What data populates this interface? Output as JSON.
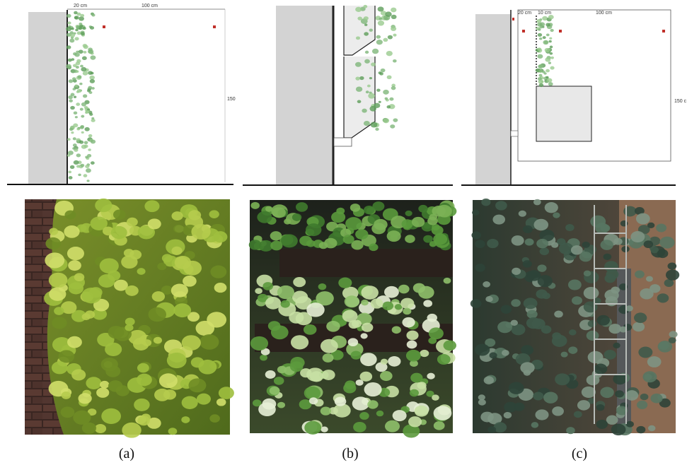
{
  "panels": [
    {
      "caption": "(a)",
      "dimensions": [
        "20 cm",
        "100 cm",
        "150"
      ]
    },
    {
      "caption": "(b)",
      "dimensions": []
    },
    {
      "caption": "(c)",
      "dimensions": [
        "20 cm",
        "10 cm",
        "100 cm",
        "150 c"
      ]
    }
  ]
}
